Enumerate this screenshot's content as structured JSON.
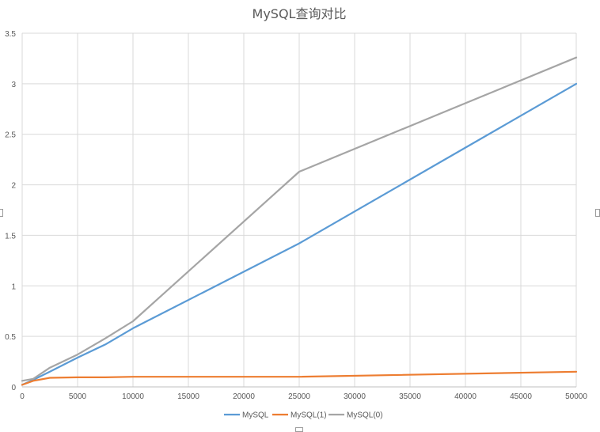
{
  "chart_data": {
    "type": "line",
    "title": "MySQL查询对比",
    "xlabel": "",
    "ylabel": "",
    "xlim": [
      0,
      50000
    ],
    "ylim": [
      0,
      3.5
    ],
    "x_ticks": [
      0,
      5000,
      10000,
      15000,
      20000,
      25000,
      30000,
      35000,
      40000,
      45000,
      50000
    ],
    "y_ticks": [
      0,
      0.5,
      1,
      1.5,
      2,
      2.5,
      3,
      3.5
    ],
    "x_tick_labels": [
      "0",
      "5000",
      "10000",
      "15000",
      "20000",
      "25000",
      "30000",
      "35000",
      "40000",
      "45000",
      "50000"
    ],
    "y_tick_labels": [
      "0",
      "0.5",
      "1",
      "1.5",
      "2",
      "2.5",
      "3",
      "3.5"
    ],
    "grid": true,
    "legend_position": "bottom",
    "series": [
      {
        "name": "MySQL",
        "color": "#5b9bd5",
        "x": [
          0,
          1000,
          2500,
          5000,
          7500,
          10000,
          25000,
          50000
        ],
        "y": [
          0.02,
          0.07,
          0.15,
          0.29,
          0.42,
          0.58,
          1.42,
          3.0
        ]
      },
      {
        "name": "MySQL(1)",
        "color": "#ed7d31",
        "x": [
          0,
          1000,
          2500,
          5000,
          7500,
          10000,
          25000,
          50000
        ],
        "y": [
          0.02,
          0.06,
          0.09,
          0.095,
          0.095,
          0.1,
          0.1,
          0.15
        ]
      },
      {
        "name": "MySQL(0)",
        "color": "#a5a5a5",
        "x": [
          0,
          1000,
          2500,
          5000,
          7500,
          10000,
          25000,
          50000
        ],
        "y": [
          0.06,
          0.08,
          0.19,
          0.32,
          0.48,
          0.65,
          2.13,
          3.26
        ]
      }
    ]
  }
}
